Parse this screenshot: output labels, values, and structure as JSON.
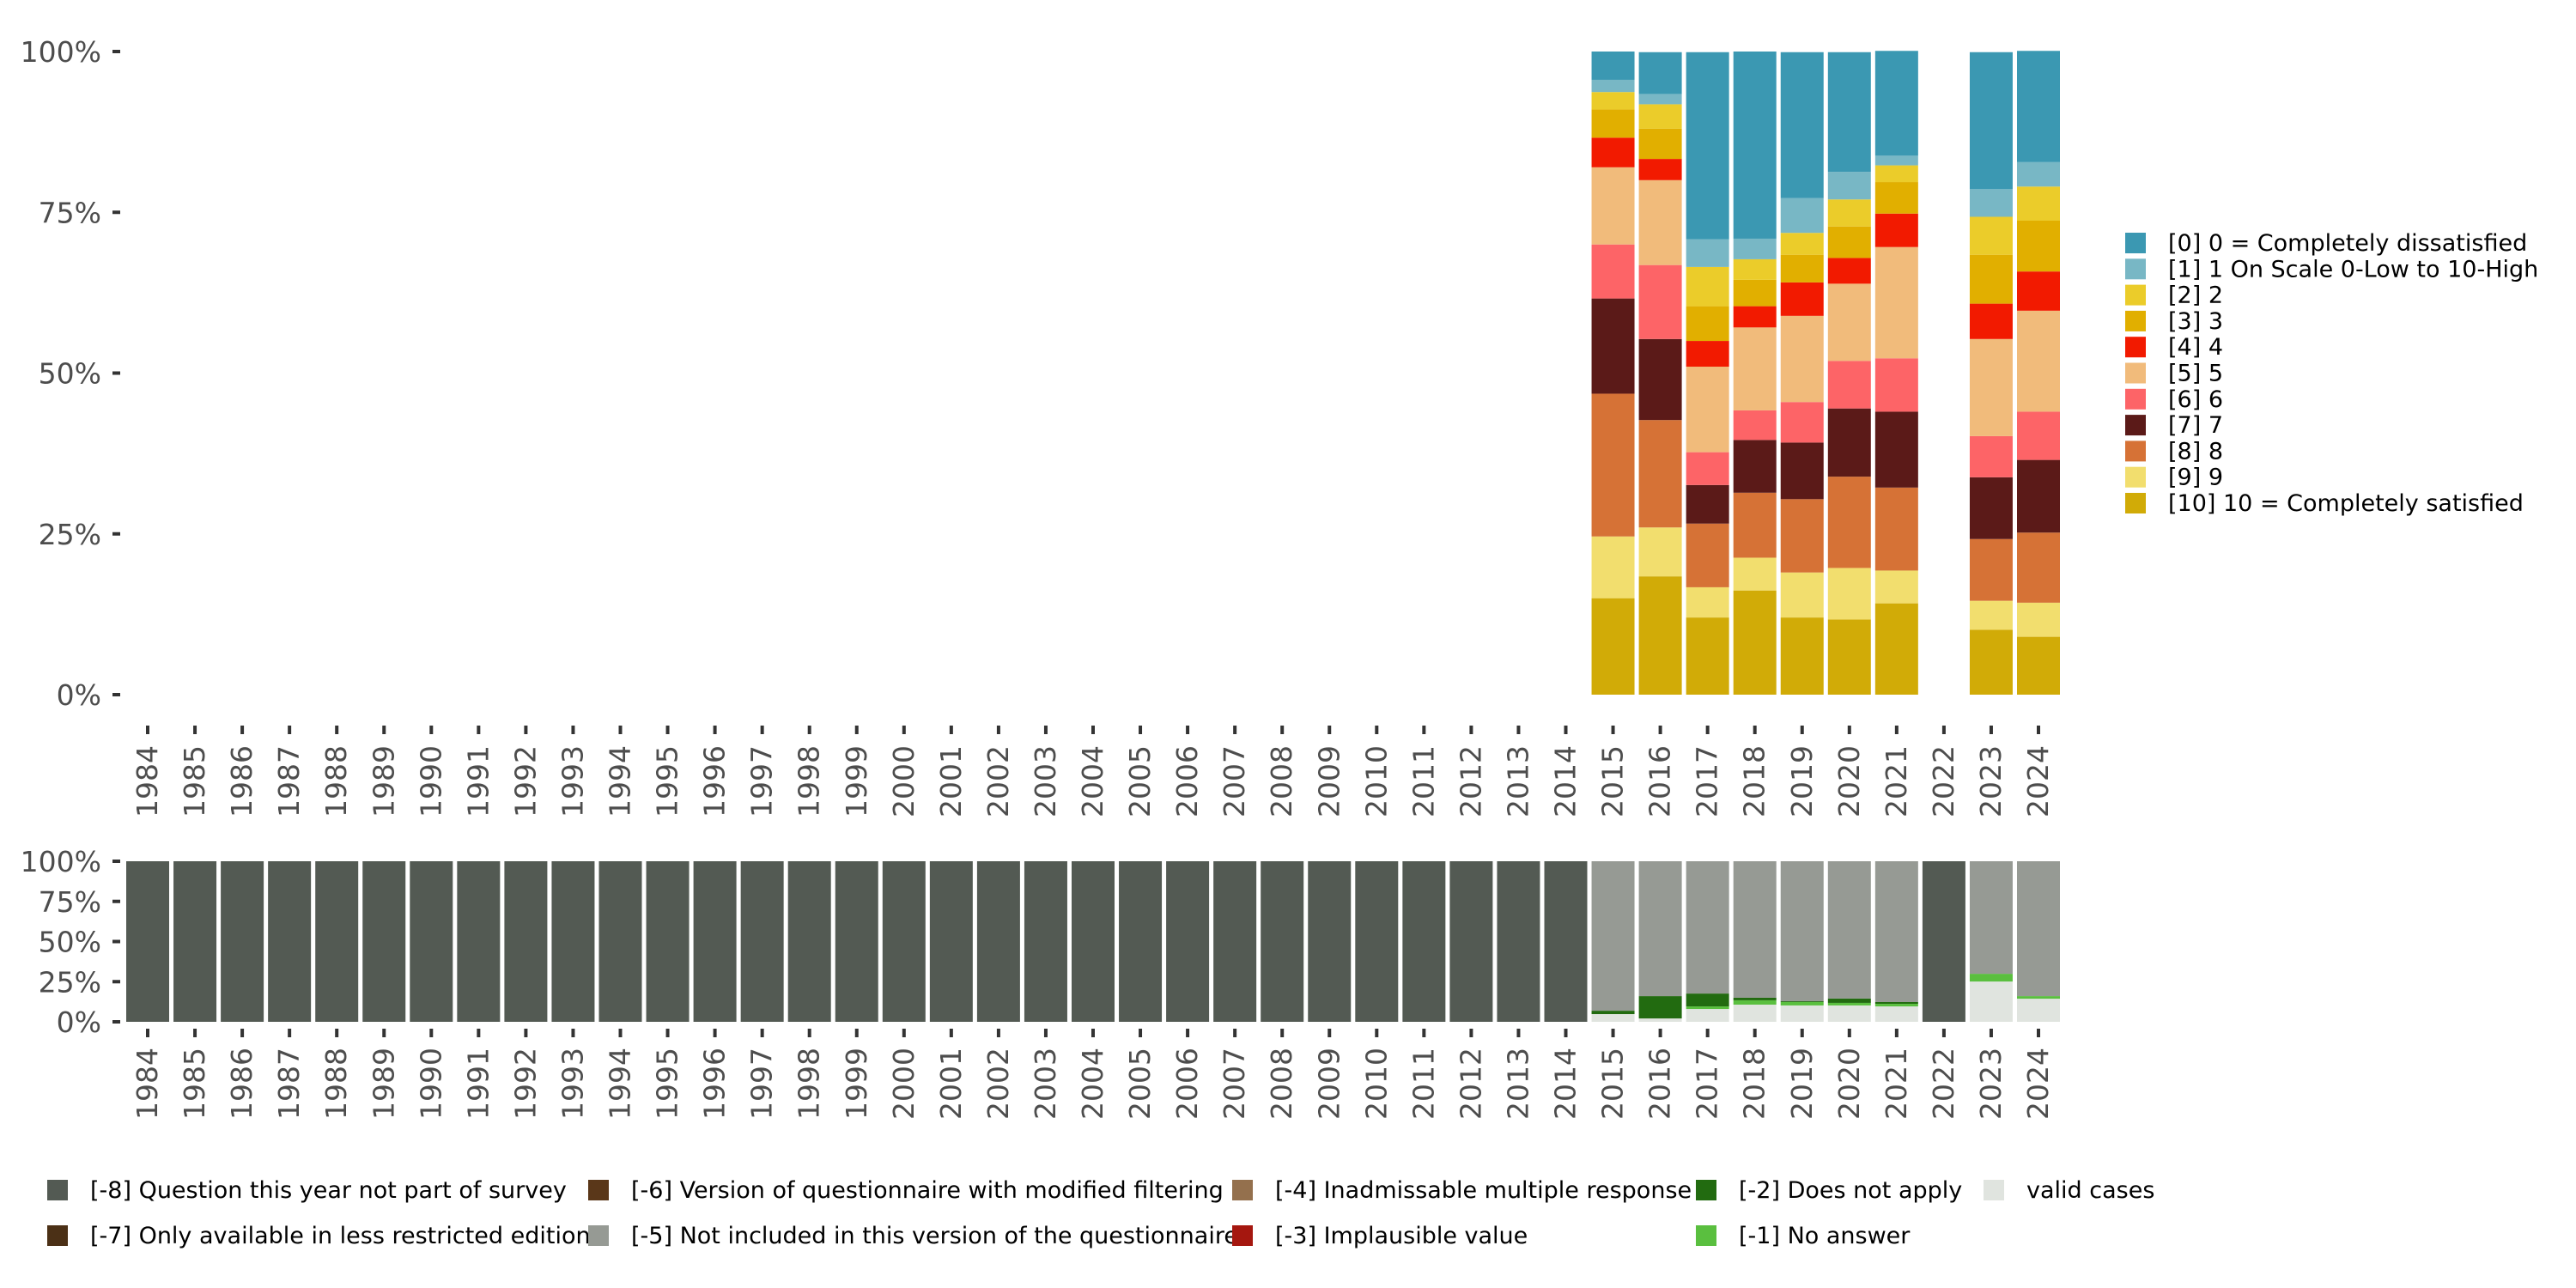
{
  "chart_data": [
    {
      "type": "bar",
      "stacked": true,
      "normalized": true,
      "title": "",
      "xlabel": "",
      "ylabel": "",
      "ylim": [
        0,
        100
      ],
      "yticks": [
        "0%",
        "25%",
        "50%",
        "75%",
        "100%"
      ],
      "categories": [
        "1984",
        "1985",
        "1986",
        "1987",
        "1988",
        "1989",
        "1990",
        "1991",
        "1992",
        "1993",
        "1994",
        "1995",
        "1996",
        "1997",
        "1998",
        "1999",
        "2000",
        "2001",
        "2002",
        "2003",
        "2004",
        "2005",
        "2006",
        "2007",
        "2008",
        "2009",
        "2010",
        "2011",
        "2012",
        "2013",
        "2014",
        "2015",
        "2016",
        "2017",
        "2018",
        "2019",
        "2020",
        "2021",
        "2022",
        "2023",
        "2024"
      ],
      "legend_position": "right",
      "series": [
        {
          "name": "[0] 0 = Completely dissatisfied",
          "color": "#3b98b2",
          "values": {
            "2015": 4.4,
            "2016": 6.5,
            "2017": 29.1,
            "2018": 29.1,
            "2019": 22.7,
            "2020": 18.6,
            "2021": 16.3,
            "2023": 21.3,
            "2024": 17.3
          }
        },
        {
          "name": "[1] 1 On Scale 0-Low to 10-High",
          "color": "#78b7c5",
          "values": {
            "2015": 1.9,
            "2016": 1.6,
            "2017": 4.3,
            "2018": 3.2,
            "2019": 5.4,
            "2020": 4.3,
            "2021": 1.5,
            "2023": 4.3,
            "2024": 3.8
          }
        },
        {
          "name": "[2] 2",
          "color": "#ebcc2a",
          "values": {
            "2015": 2.7,
            "2016": 3.8,
            "2017": 6.1,
            "2018": 3.2,
            "2019": 3.4,
            "2020": 4.2,
            "2021": 2.6,
            "2023": 5.9,
            "2024": 5.3
          }
        },
        {
          "name": "[3] 3",
          "color": "#e1af00",
          "values": {
            "2015": 4.4,
            "2016": 4.7,
            "2017": 5.4,
            "2018": 4.1,
            "2019": 4.3,
            "2020": 4.9,
            "2021": 4.9,
            "2023": 7.6,
            "2024": 7.9
          }
        },
        {
          "name": "[4] 4",
          "color": "#f21a00",
          "values": {
            "2015": 4.6,
            "2016": 3.3,
            "2017": 4.0,
            "2018": 3.3,
            "2019": 5.2,
            "2020": 4.0,
            "2021": 5.2,
            "2023": 5.5,
            "2024": 6.1
          }
        },
        {
          "name": "[5] 5",
          "color": "#f1bb7b",
          "values": {
            "2015": 12.0,
            "2016": 13.2,
            "2017": 13.3,
            "2018": 12.9,
            "2019": 13.4,
            "2020": 12.0,
            "2021": 17.3,
            "2023": 15.1,
            "2024": 15.7
          }
        },
        {
          "name": "[6] 6",
          "color": "#fd6467",
          "values": {
            "2015": 8.4,
            "2016": 11.5,
            "2017": 5.1,
            "2018": 4.6,
            "2019": 6.3,
            "2020": 7.4,
            "2021": 8.3,
            "2023": 6.4,
            "2024": 7.5
          }
        },
        {
          "name": "[7] 7",
          "color": "#5b1a18",
          "values": {
            "2015": 14.8,
            "2016": 12.6,
            "2017": 6.0,
            "2018": 8.2,
            "2019": 8.8,
            "2020": 10.6,
            "2021": 11.8,
            "2023": 9.6,
            "2024": 11.3
          }
        },
        {
          "name": "[8] 8",
          "color": "#d67236",
          "values": {
            "2015": 22.2,
            "2016": 16.7,
            "2017": 9.9,
            "2018": 10.1,
            "2019": 11.4,
            "2020": 14.2,
            "2021": 12.9,
            "2023": 9.6,
            "2024": 10.9
          }
        },
        {
          "name": "[9] 9",
          "color": "#f2de6e",
          "values": {
            "2015": 9.6,
            "2016": 7.6,
            "2017": 4.7,
            "2018": 5.1,
            "2019": 7.0,
            "2020": 8.0,
            "2021": 5.1,
            "2023": 4.5,
            "2024": 5.3
          }
        },
        {
          "name": "[10] 10 = Completely satisfied",
          "color": "#d1ab07",
          "values": {
            "2015": 15.0,
            "2016": 18.4,
            "2017": 12.0,
            "2018": 16.2,
            "2019": 12.0,
            "2020": 11.7,
            "2021": 14.2,
            "2023": 10.1,
            "2024": 9.0
          }
        }
      ]
    },
    {
      "type": "bar",
      "stacked": true,
      "normalized": true,
      "title": "",
      "xlabel": "",
      "ylabel": "",
      "ylim": [
        0,
        100
      ],
      "yticks": [
        "0%",
        "25%",
        "50%",
        "75%",
        "100%"
      ],
      "categories": [
        "1984",
        "1985",
        "1986",
        "1987",
        "1988",
        "1989",
        "1990",
        "1991",
        "1992",
        "1993",
        "1994",
        "1995",
        "1996",
        "1997",
        "1998",
        "1999",
        "2000",
        "2001",
        "2002",
        "2003",
        "2004",
        "2005",
        "2006",
        "2007",
        "2008",
        "2009",
        "2010",
        "2011",
        "2012",
        "2013",
        "2014",
        "2015",
        "2016",
        "2017",
        "2018",
        "2019",
        "2020",
        "2021",
        "2022",
        "2023",
        "2024"
      ],
      "legend_position": "bottom",
      "series": [
        {
          "name": "valid cases",
          "color": "#e0e4df",
          "values": {
            "2015": 4.8,
            "2016": 2.1,
            "2017": 8.0,
            "2018": 10.7,
            "2019": 10.2,
            "2020": 10.2,
            "2021": 9.6,
            "2023": 25.1,
            "2024": 14.4
          }
        },
        {
          "name": "[-1] No answer",
          "color": "#5abf3f",
          "values": {
            "2017": 1.6,
            "2018": 2.7,
            "2019": 2.1,
            "2020": 1.6,
            "2021": 1.6,
            "2023": 4.8,
            "2024": 1.6
          }
        },
        {
          "name": "[-2] Does not apply",
          "color": "#226b10",
          "values": {
            "2015": 2.1,
            "2016": 13.9,
            "2017": 8.0,
            "2018": 1.6,
            "2019": 0.5,
            "2020": 2.7,
            "2021": 1.1
          }
        },
        {
          "name": "[-3] Implausible value",
          "color": "#a5170f",
          "values": {}
        },
        {
          "name": "[-4] Inadmissable multiple response",
          "color": "#94704d",
          "values": {}
        },
        {
          "name": "[-5] Not included in this version of the questionnaire",
          "color": "#969a94",
          "values": {
            "2015": 93.1,
            "2016": 84.0,
            "2017": 82.4,
            "2018": 85.0,
            "2019": 87.2,
            "2020": 85.5,
            "2021": 87.7,
            "2023": 70.1,
            "2024": 84.0
          }
        },
        {
          "name": "[-6] Version of questionnaire with modified filtering",
          "color": "#5a3719",
          "values": {}
        },
        {
          "name": "[-7] Only available in less restricted edition",
          "color": "#4b3016",
          "values": {}
        },
        {
          "name": "[-8] Question this year not part of survey",
          "color": "#535a53",
          "values": {
            "1984": 100,
            "1985": 100,
            "1986": 100,
            "1987": 100,
            "1988": 100,
            "1989": 100,
            "1990": 100,
            "1991": 100,
            "1992": 100,
            "1993": 100,
            "1994": 100,
            "1995": 100,
            "1996": 100,
            "1997": 100,
            "1998": 100,
            "1999": 100,
            "2000": 100,
            "2001": 100,
            "2002": 100,
            "2003": 100,
            "2004": 100,
            "2005": 100,
            "2006": 100,
            "2007": 100,
            "2008": 100,
            "2009": 100,
            "2010": 100,
            "2011": 100,
            "2012": 100,
            "2013": 100,
            "2014": 100,
            "2022": 100
          }
        }
      ],
      "legend_order": [
        "[-8] Question this year not part of survey",
        "[-7] Only available in less restricted edition",
        "[-6] Version of questionnaire with modified filtering",
        "[-5] Not included in this version of the questionnaire",
        "[-4] Inadmissable multiple response",
        "[-3] Implausible value",
        "[-2] Does not apply",
        "[-1] No answer",
        "valid cases"
      ]
    }
  ]
}
